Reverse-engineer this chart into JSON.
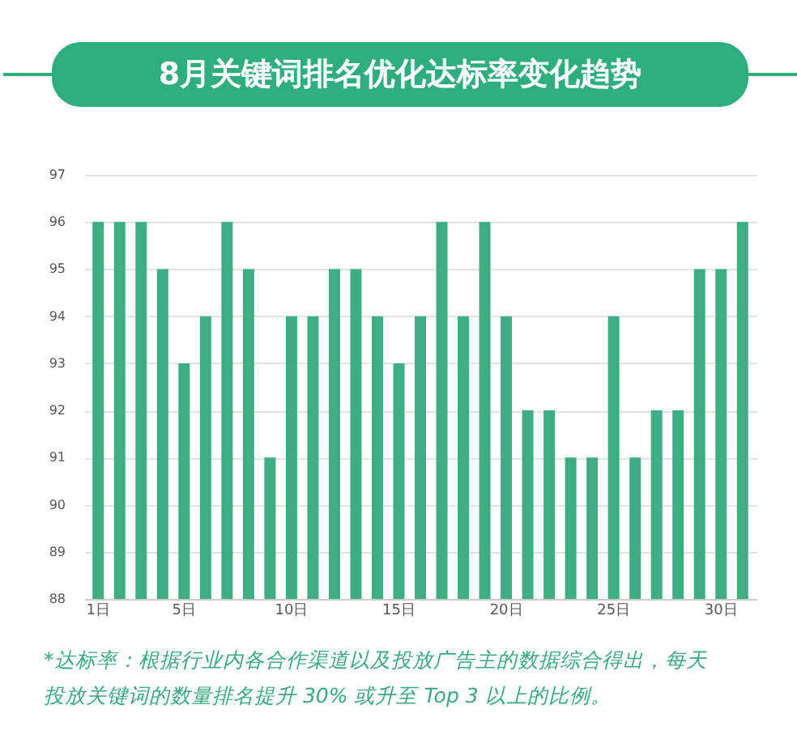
{
  "chart_data": {
    "type": "bar",
    "title": "8月关键词排名优化达标率变化趋势",
    "categories": [
      "1日",
      null,
      null,
      null,
      "5日",
      null,
      null,
      null,
      null,
      "10日",
      null,
      null,
      null,
      null,
      "15日",
      null,
      null,
      null,
      null,
      "20日",
      null,
      null,
      null,
      null,
      "25日",
      null,
      null,
      null,
      null,
      "30日",
      null
    ],
    "series": [
      {
        "color": "#3dae84",
        "values": [
          96,
          96,
          96,
          95,
          93,
          94,
          96,
          95,
          91,
          94,
          94,
          95,
          95,
          94,
          93,
          94,
          96,
          94,
          96,
          94,
          92,
          92,
          91,
          91,
          94,
          91,
          92,
          92,
          95,
          95,
          96
        ]
      }
    ],
    "ylim": [
      88,
      97
    ],
    "yticks": [
      88,
      89,
      90,
      91,
      92,
      93,
      94,
      95,
      96,
      97
    ],
    "grid": "y",
    "annotations": [
      "*达标率：根据行业内各合作渠道以及投放广告主的数据综合得出，每天投放关键词的数量排名提升 30% 或升至 Top 3 以上的比例。"
    ]
  }
}
